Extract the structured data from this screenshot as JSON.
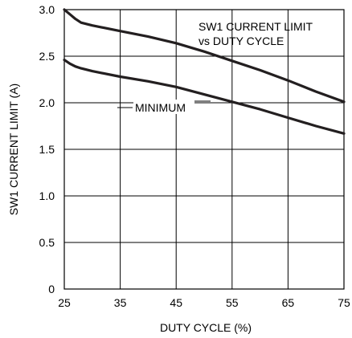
{
  "chart_data": {
    "type": "line",
    "title": "SW1 CURRENT LIMIT vs DUTY CYCLE",
    "title_lines": [
      "SW1 CURRENT LIMIT",
      "vs DUTY CYCLE"
    ],
    "xlabel": "DUTY CYCLE (%)",
    "ylabel": "SW1 CURRENT LIMIT (A)",
    "xlim": [
      25,
      75
    ],
    "ylim": [
      0,
      3.0
    ],
    "x_ticks": [
      25,
      35,
      45,
      55,
      65,
      75
    ],
    "x_tick_labels": [
      "25",
      "35",
      "45",
      "55",
      "65",
      "75"
    ],
    "y_ticks": [
      0,
      0.5,
      1.0,
      1.5,
      2.0,
      2.5,
      3.0
    ],
    "y_tick_labels": [
      "0",
      "0.5",
      "1.0",
      "1.5",
      "2.0",
      "2.5",
      "3.0"
    ],
    "grid": true,
    "legend": "none",
    "annotations": [
      {
        "text": "MINIMUM"
      }
    ],
    "series": [
      {
        "x": [
          25,
          26,
          27,
          28,
          30,
          35,
          40,
          45,
          50,
          55,
          60,
          65,
          70,
          75
        ],
        "y": [
          3.0,
          2.95,
          2.9,
          2.86,
          2.83,
          2.77,
          2.71,
          2.64,
          2.55,
          2.45,
          2.35,
          2.24,
          2.12,
          2.01
        ]
      },
      {
        "name": "MINIMUM",
        "x": [
          25,
          26,
          27,
          28,
          30,
          35,
          40,
          45,
          50,
          55,
          60,
          65,
          70,
          75
        ],
        "y": [
          2.46,
          2.42,
          2.39,
          2.37,
          2.34,
          2.28,
          2.23,
          2.17,
          2.09,
          2.01,
          1.93,
          1.84,
          1.75,
          1.67
        ]
      }
    ],
    "colors": {
      "line": "#231f20",
      "grid": "#000000",
      "text": "#000000"
    }
  }
}
